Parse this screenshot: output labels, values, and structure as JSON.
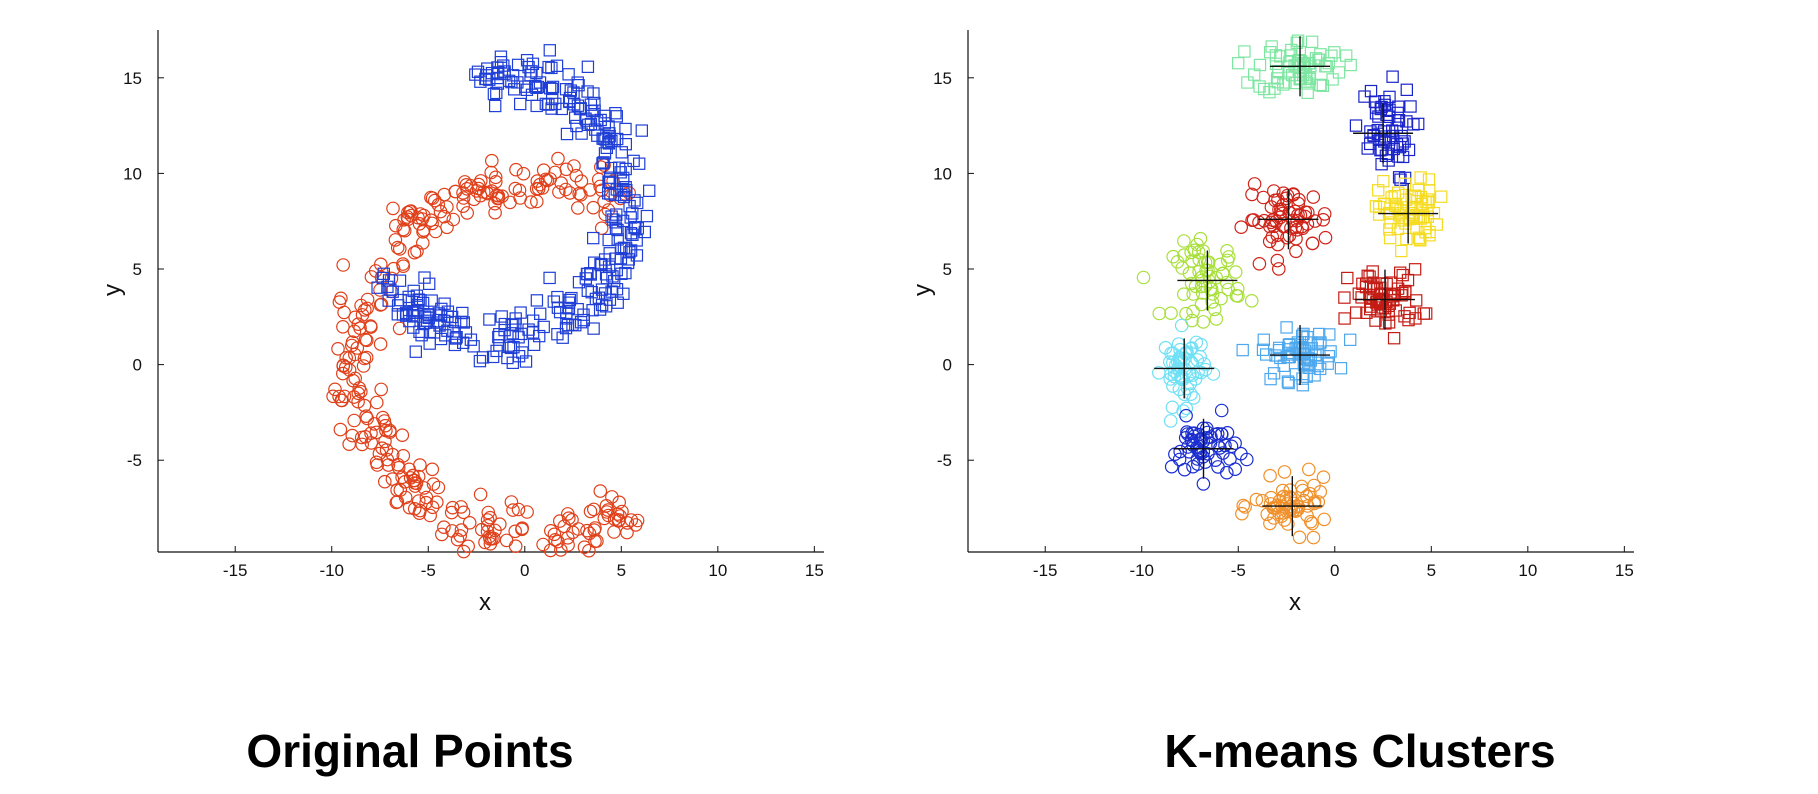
{
  "chart_data": [
    {
      "type": "scatter",
      "title": "Original Points",
      "xlabel": "x",
      "ylabel": "y",
      "xlim": [
        -19,
        15.5
      ],
      "ylim": [
        -9.8,
        17.5
      ],
      "xticks": [
        -15,
        -10,
        -5,
        0,
        5,
        10,
        15
      ],
      "yticks": [
        -5,
        0,
        5,
        10,
        15
      ],
      "grid": false,
      "series": [
        {
          "marker": "circle",
          "color": "#e0401a",
          "shape": "arc",
          "center": [
            0.5,
            0.3
          ],
          "radius": [
            8.8,
            9.8
          ],
          "angle_range_deg": [
            60,
            305
          ],
          "count": 330
        },
        {
          "marker": "square",
          "color": "#1f3fd6",
          "shape": "arc",
          "center": [
            -1.5,
            8.2
          ],
          "radius": [
            6.2,
            7.4
          ],
          "angle_range_deg": [
            -150,
            100
          ],
          "count": 330
        }
      ]
    },
    {
      "type": "scatter",
      "title": "K-means Clusters",
      "xlabel": "x",
      "ylabel": "y",
      "xlim": [
        -19,
        15.5
      ],
      "ylim": [
        -9.8,
        17.5
      ],
      "xticks": [
        -15,
        -10,
        -5,
        0,
        5,
        10,
        15
      ],
      "yticks": [
        -5,
        0,
        5,
        10,
        15
      ],
      "grid": false,
      "centroid_marker": "plus",
      "clusters": [
        {
          "marker": "square",
          "color": "#7fe6a2",
          "center": [
            -1.8,
            15.6
          ],
          "spread": [
            2.0,
            1.3
          ],
          "count": 70
        },
        {
          "marker": "square",
          "color": "#1a24c9",
          "center": [
            2.5,
            12.1
          ],
          "spread": [
            1.4,
            2.3
          ],
          "count": 60
        },
        {
          "marker": "square",
          "color": "#f5dc22",
          "center": [
            3.8,
            7.9
          ],
          "spread": [
            1.4,
            1.6
          ],
          "count": 70
        },
        {
          "marker": "square",
          "color": "#c41c14",
          "center": [
            2.6,
            3.4
          ],
          "spread": [
            1.7,
            1.4
          ],
          "count": 70
        },
        {
          "marker": "square",
          "color": "#4ea8ee",
          "center": [
            -1.8,
            0.5
          ],
          "spread": [
            1.8,
            1.2
          ],
          "count": 65
        },
        {
          "marker": "circle",
          "color": "#d02318",
          "center": [
            -2.4,
            7.6
          ],
          "spread": [
            2.0,
            1.5
          ],
          "count": 65
        },
        {
          "marker": "circle",
          "color": "#a8e03a",
          "center": [
            -6.6,
            4.4
          ],
          "spread": [
            1.6,
            1.8
          ],
          "count": 60
        },
        {
          "marker": "circle",
          "color": "#6fe0f5",
          "center": [
            -7.8,
            -0.2
          ],
          "spread": [
            1.0,
            1.7
          ],
          "count": 60
        },
        {
          "marker": "circle",
          "color": "#1a2ed0",
          "center": [
            -6.8,
            -4.4
          ],
          "spread": [
            1.5,
            1.4
          ],
          "count": 60
        },
        {
          "marker": "circle",
          "color": "#f0902a",
          "center": [
            -2.2,
            -7.4
          ],
          "spread": [
            1.8,
            1.2
          ],
          "count": 60
        }
      ]
    }
  ]
}
